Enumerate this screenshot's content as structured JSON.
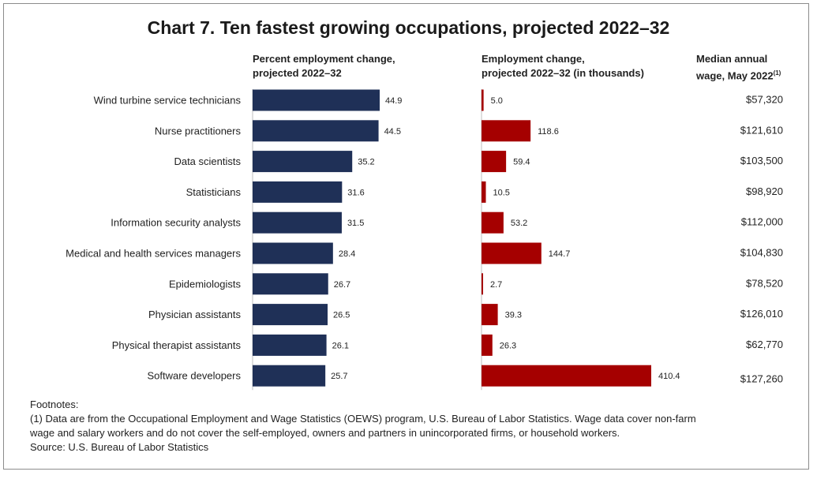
{
  "title": "Chart 7. Ten fastest growing occupations, projected 2022–32",
  "headers": {
    "pct_line1": "Percent employment change,",
    "pct_line2": "projected 2022–32",
    "emp_line1": "Employment change,",
    "emp_line2": "projected 2022–32 (in thousands)",
    "wage_line1": "Median annual",
    "wage_line2": "wage, May 2022",
    "wage_sup": "(1)"
  },
  "chart_data": {
    "type": "bar",
    "orientation": "horizontal",
    "categories": [
      "Wind turbine service technicians",
      "Nurse practitioners",
      "Data scientists",
      "Statisticians",
      "Information security analysts",
      "Medical and health services managers",
      "Epidemiologists",
      "Physician assistants",
      "Physical therapist assistants",
      "Software developers"
    ],
    "series": [
      {
        "name": "Percent employment change, projected 2022–32",
        "color": "#1f3057",
        "values": [
          44.9,
          44.5,
          35.2,
          31.6,
          31.5,
          28.4,
          26.7,
          26.5,
          26.1,
          25.7
        ],
        "labels": [
          "44.9",
          "44.5",
          "35.2",
          "31.6",
          "31.5",
          "28.4",
          "26.7",
          "26.5",
          "26.1",
          "25.7"
        ]
      },
      {
        "name": "Employment change, projected 2022–32 (in thousands)",
        "color": "#a50000",
        "values": [
          5.0,
          118.6,
          59.4,
          10.5,
          53.2,
          144.7,
          2.7,
          39.3,
          26.3,
          410.4
        ],
        "labels": [
          "5.0",
          "118.6",
          "59.4",
          "10.5",
          "53.2",
          "144.7",
          "2.7",
          "39.3",
          "26.3",
          "410.4"
        ]
      }
    ],
    "wages": [
      "$57,320",
      "$121,610",
      "$103,500",
      "$98,920",
      "$112,000",
      "$104,830",
      "$78,520",
      "$126,010",
      "$62,770",
      "$127,260"
    ],
    "xlim_pct": [
      0,
      75
    ],
    "xlim_emp": [
      0,
      500
    ],
    "grid": false,
    "legend": "none"
  },
  "footnotes": {
    "heading": "Footnotes:",
    "note1_line1": "(1) Data are from the Occupational Employment and Wage Statistics (OEWS) program, U.S. Bureau of Labor Statistics. Wage data cover non-farm",
    "note1_line2": "wage and salary workers and do not cover the self-employed, owners and partners in unincorporated firms, or household workers.",
    "source": "Source: U.S. Bureau of Labor Statistics"
  }
}
